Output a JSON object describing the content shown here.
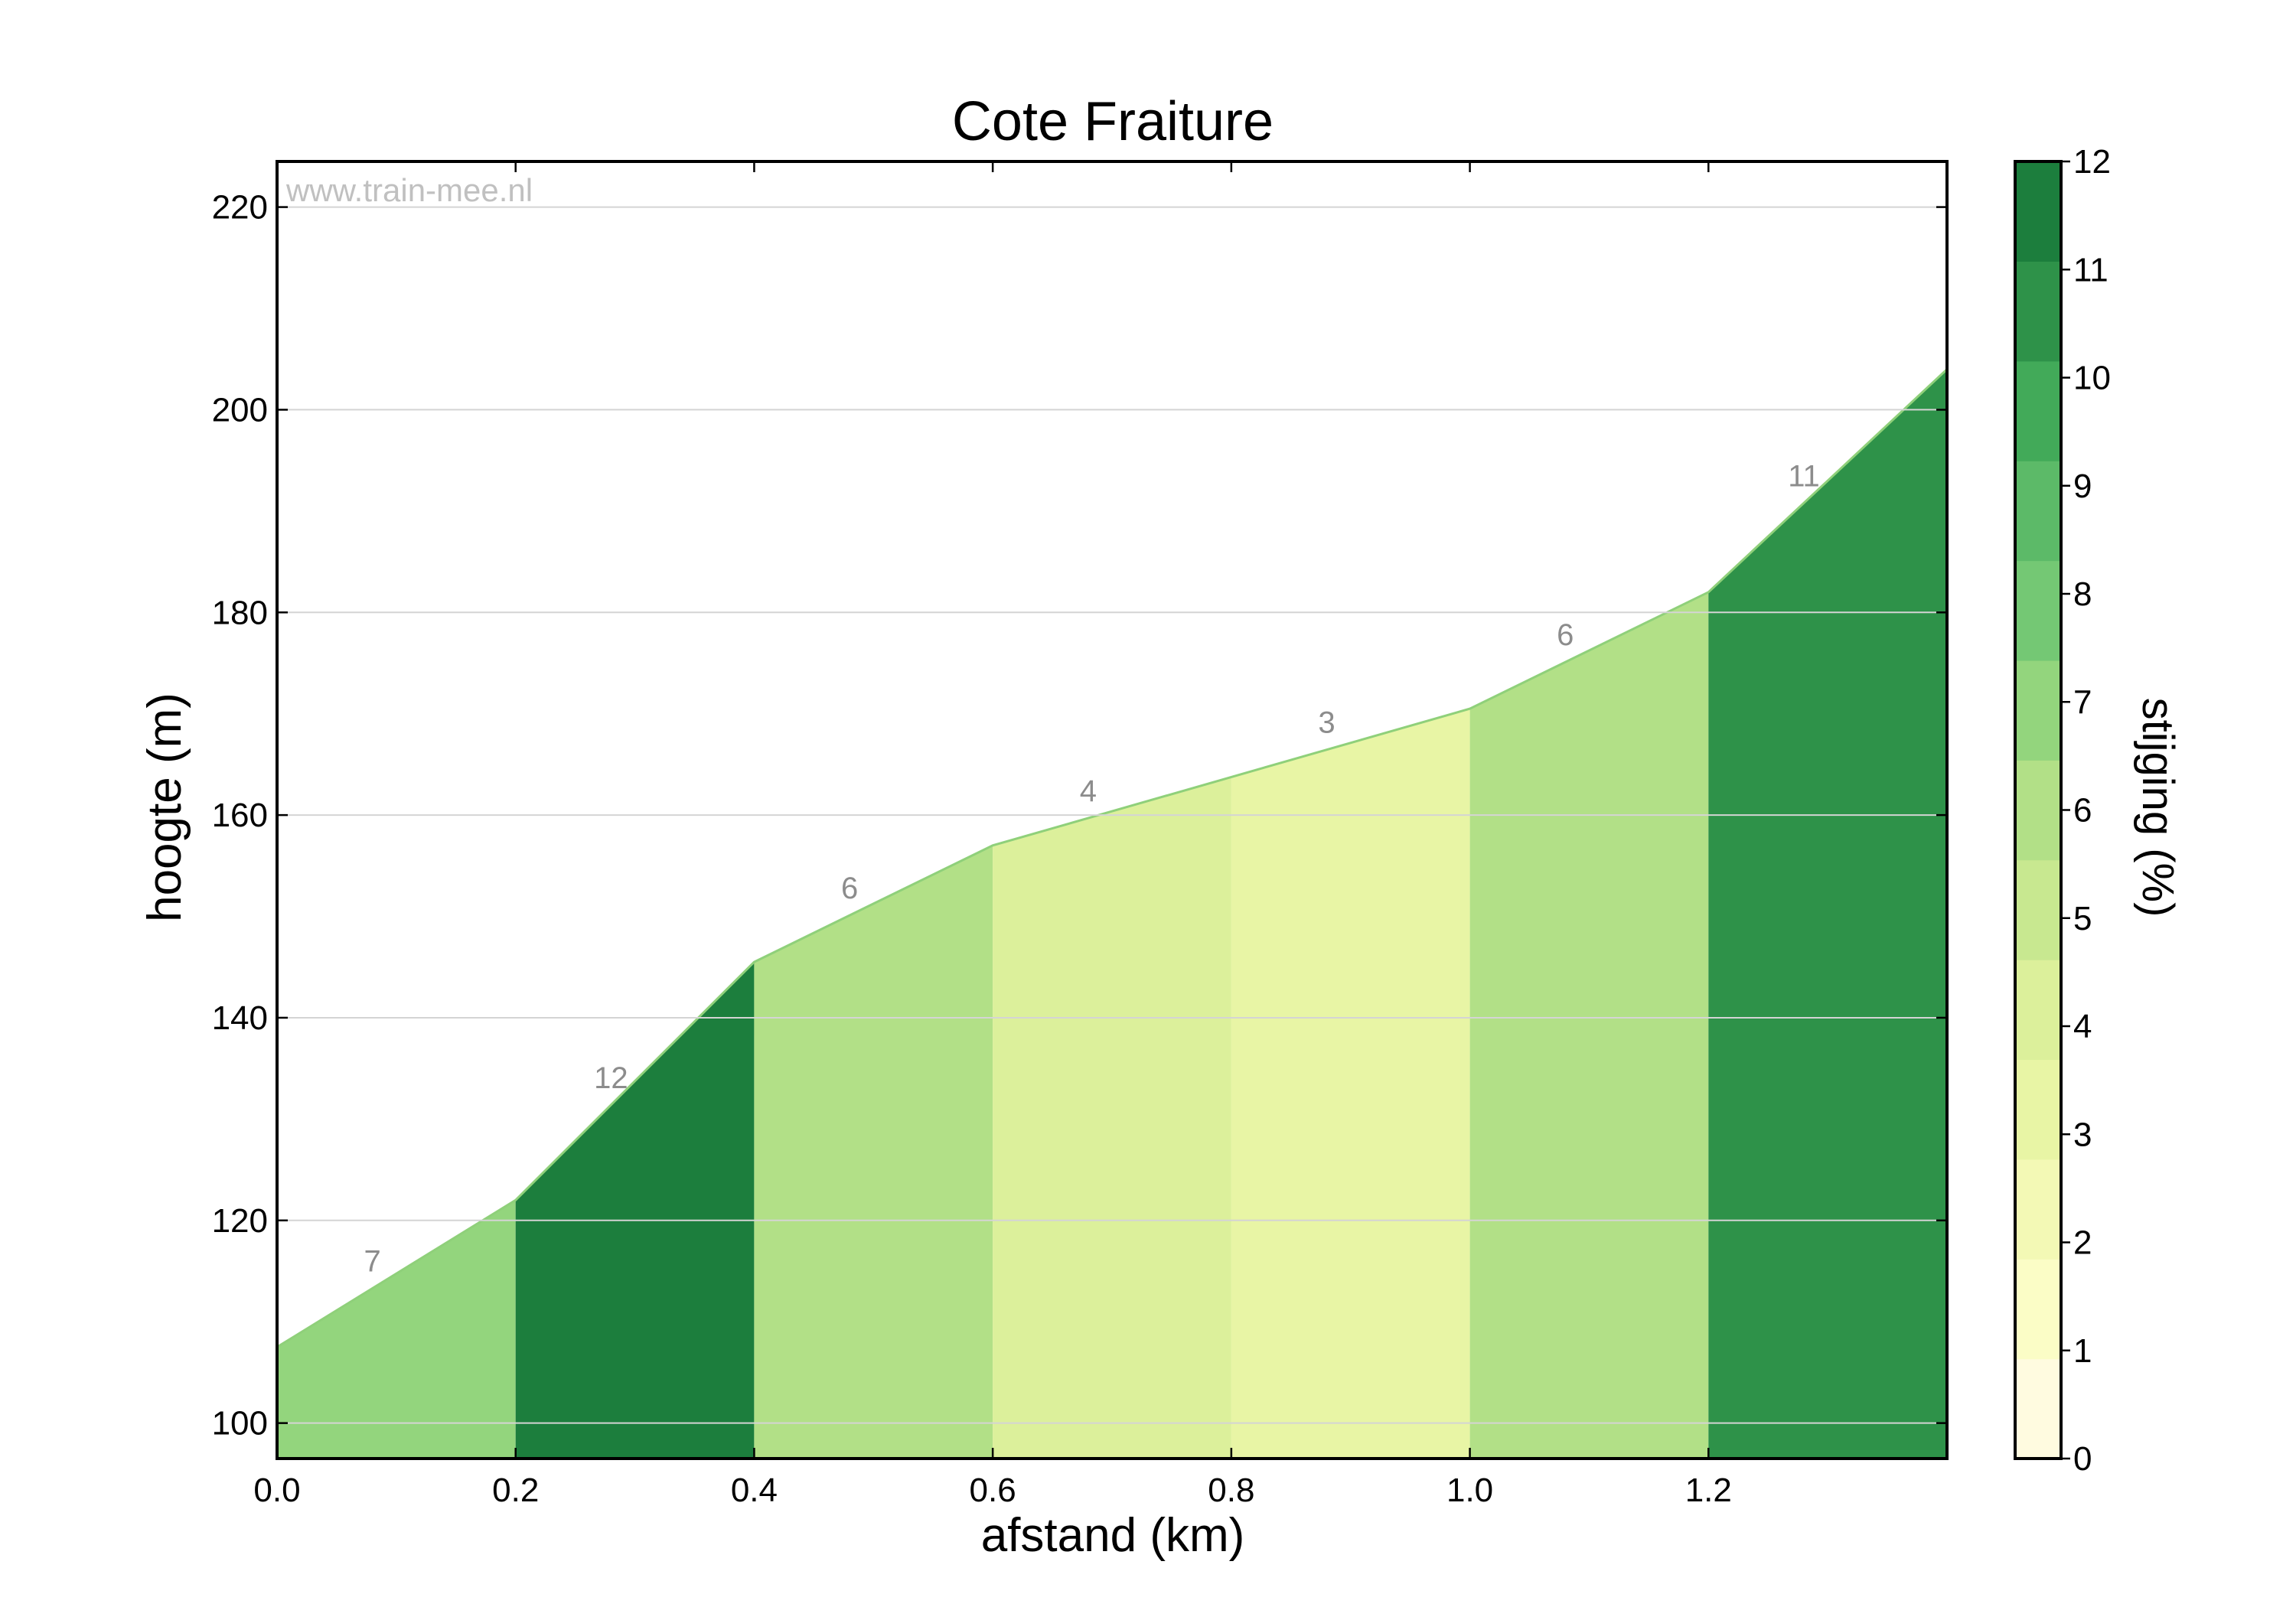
{
  "chart_data": {
    "type": "area",
    "title": "Cote Fraiture",
    "xlabel": "afstand (km)",
    "ylabel": "hoogte (m)",
    "watermark": "www.train-mee.nl",
    "xlim": [
      0,
      1.4
    ],
    "ylim": [
      96.5,
      224.5
    ],
    "xticks": [
      "0.0",
      "0.2",
      "0.4",
      "0.6",
      "0.8",
      "1.0",
      "1.2"
    ],
    "yticks": [
      "100",
      "120",
      "140",
      "160",
      "180",
      "200",
      "220"
    ],
    "grid": "horizontal",
    "profile": {
      "x": [
        0.0,
        0.2,
        0.4,
        0.6,
        1.0,
        1.2,
        1.4
      ],
      "y": [
        107.5,
        122,
        145.5,
        157,
        170.5,
        182,
        204
      ]
    },
    "segments": [
      {
        "start": 0.0,
        "end": 0.2,
        "gradient": "7"
      },
      {
        "start": 0.2,
        "end": 0.4,
        "gradient": "12"
      },
      {
        "start": 0.4,
        "end": 0.6,
        "gradient": "6"
      },
      {
        "start": 0.6,
        "end": 0.8,
        "gradient": "4"
      },
      {
        "start": 0.8,
        "end": 1.0,
        "gradient": "3"
      },
      {
        "start": 1.0,
        "end": 1.2,
        "gradient": "6"
      },
      {
        "start": 1.2,
        "end": 1.4,
        "gradient": "11"
      }
    ],
    "colorbar": {
      "label": "stijging (%)",
      "range": [
        0,
        12
      ],
      "ticks": [
        "0",
        "1",
        "2",
        "3",
        "4",
        "5",
        "6",
        "7",
        "8",
        "9",
        "10",
        "11",
        "12"
      ],
      "colors": [
        "#fffbe0",
        "#fbfdc6",
        "#f3f9b5",
        "#e8f5a5",
        "#dcf09b",
        "#c8e890",
        "#b2e087",
        "#93d57d",
        "#74c874",
        "#5cba68",
        "#42aa59",
        "#2e9249",
        "#1c7e3d"
      ]
    }
  }
}
